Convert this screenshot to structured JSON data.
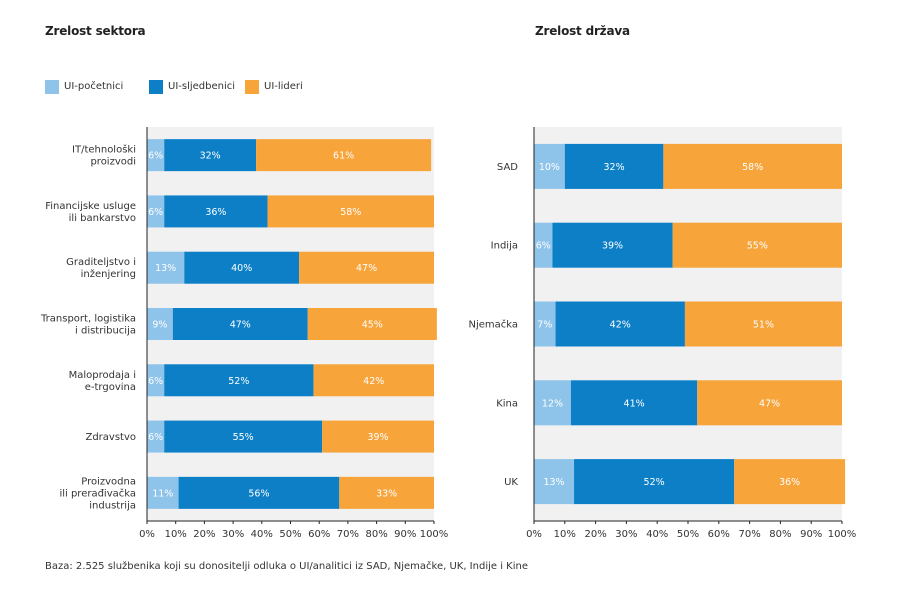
{
  "titles": {
    "sectors": "Zrelost sektora",
    "countries": "Zrelost država"
  },
  "legend": [
    {
      "label": "UI-početnici",
      "color": "#8ec3ea"
    },
    {
      "label": "UI-sljedbenici",
      "color": "#0c7fc7"
    },
    {
      "label": "UI-lideri",
      "color": "#f7a43b"
    }
  ],
  "footnote": "Baza: 2.525 službenika koji su donositelji odluka o UI/analitici iz SAD, Njemačke, UK, Indije i Kine",
  "chart_data": [
    {
      "type": "bar",
      "orientation": "horizontal",
      "stacked": true,
      "title": "Zrelost sektora",
      "categories": [
        [
          "IT/tehnološki",
          "proizvodi"
        ],
        [
          "Financijske usluge",
          "ili bankarstvo"
        ],
        [
          "Graditeljstvo i",
          "inženjering"
        ],
        [
          "Transport, logistika",
          "i distribucija"
        ],
        [
          "Maloprodaja i",
          "e-trgovina"
        ],
        [
          "Zdravstvo"
        ],
        [
          "Proizvodna",
          "ili prerađivačka",
          "industrija"
        ]
      ],
      "series": [
        {
          "name": "UI-početnici",
          "values": [
            6,
            6,
            13,
            9,
            6,
            6,
            11
          ]
        },
        {
          "name": "UI-sljedbenici",
          "values": [
            32,
            36,
            40,
            47,
            52,
            55,
            56
          ]
        },
        {
          "name": "UI-lideri",
          "values": [
            61,
            58,
            47,
            45,
            42,
            39,
            33
          ]
        }
      ],
      "xlim": [
        0,
        100
      ],
      "xticks": [
        "0%",
        "10%",
        "20%",
        "30%",
        "40%",
        "50%",
        "60%",
        "70%",
        "80%",
        "90%",
        "100%"
      ]
    },
    {
      "type": "bar",
      "orientation": "horizontal",
      "stacked": true,
      "title": "Zrelost država",
      "categories": [
        [
          "SAD"
        ],
        [
          "Indija"
        ],
        [
          "Njemačka"
        ],
        [
          "Kina"
        ],
        [
          "UK"
        ]
      ],
      "series": [
        {
          "name": "UI-početnici",
          "values": [
            10,
            6,
            7,
            12,
            13
          ]
        },
        {
          "name": "UI-sljedbenici",
          "values": [
            32,
            39,
            42,
            41,
            52
          ]
        },
        {
          "name": "UI-lideri",
          "values": [
            58,
            55,
            51,
            47,
            36
          ]
        }
      ],
      "xlim": [
        0,
        100
      ],
      "xticks": [
        "0%",
        "10%",
        "20%",
        "30%",
        "40%",
        "50%",
        "60%",
        "70%",
        "80%",
        "90%",
        "100%"
      ]
    }
  ]
}
